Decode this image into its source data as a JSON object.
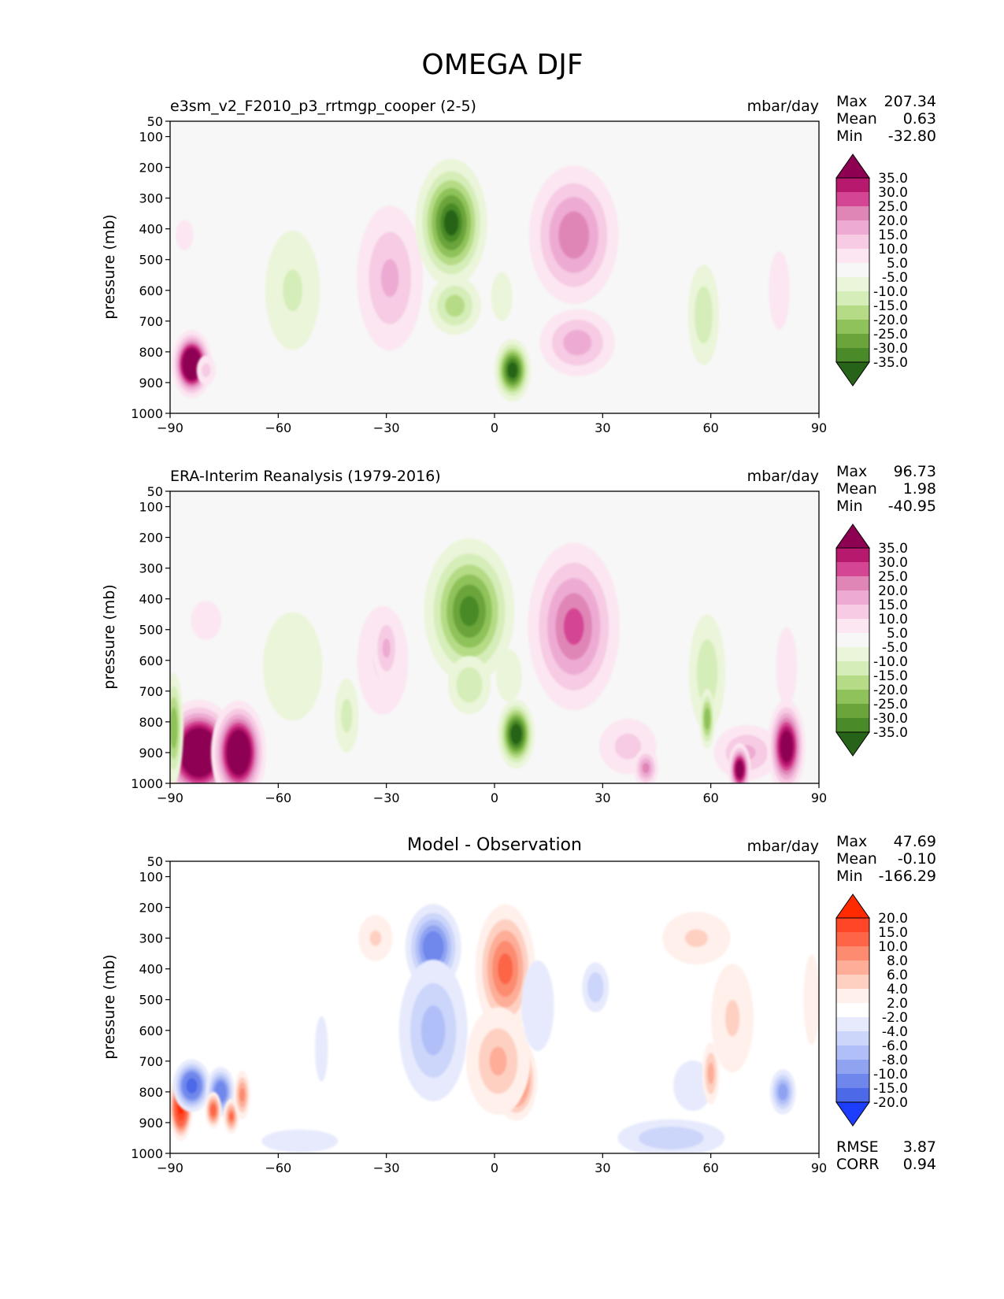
{
  "figure": {
    "title": "OMEGA DJF"
  },
  "chart_data": [
    {
      "type": "contour",
      "title": "e3sm_v2_F2010_p3_rrtmgp_cooper (2-5)",
      "units": "mbar/day",
      "ylabel": "pressure (mb)",
      "xlim": [
        -90,
        90
      ],
      "ylim": [
        50,
        1000
      ],
      "x_ticks": [
        "−90",
        "−60",
        "−30",
        "0",
        "30",
        "60",
        "90"
      ],
      "y_ticks": [
        "50",
        "100",
        "200",
        "300",
        "400",
        "500",
        "600",
        "700",
        "800",
        "900",
        "1000"
      ],
      "stats": [
        {
          "label": "Max",
          "value": "207.34"
        },
        {
          "label": "Mean",
          "value": "0.63"
        },
        {
          "label": "Min",
          "value": "-32.80"
        }
      ],
      "colorbar": {
        "levels": [
          "35.0",
          "30.0",
          "25.0",
          "20.0",
          "15.0",
          "10.0",
          "5.0",
          "-5.0",
          "-10.0",
          "-15.0",
          "-20.0",
          "-25.0",
          "-30.0",
          "-35.0"
        ],
        "colors": [
          "#8e0152",
          "#b7196e",
          "#d44593",
          "#e086b7",
          "#edabd3",
          "#f6cbe3",
          "#fbe6f1",
          "#f7f7f7",
          "#eaf5d9",
          "#d5edb8",
          "#b6db86",
          "#8fc25a",
          "#6aa43b",
          "#4a8a28",
          "#276419"
        ]
      },
      "blobs": [
        {
          "lat": -84,
          "p": 840,
          "rl": 2.5,
          "rp": 110,
          "value": 60
        },
        {
          "lat": -80,
          "p": 860,
          "rl": 2,
          "rp": 80,
          "value": 12
        },
        {
          "lat": -86,
          "p": 420,
          "rl": 4,
          "rp": 180,
          "value": 6
        },
        {
          "lat": -56,
          "p": 600,
          "rl": 6,
          "rp": 340,
          "value": -11
        },
        {
          "lat": -29,
          "p": 560,
          "rl": 6,
          "rp": 340,
          "value": 16
        },
        {
          "lat": -12,
          "p": 380,
          "rl": 5,
          "rp": 230,
          "value": -36
        },
        {
          "lat": -11,
          "p": 650,
          "rl": 4.5,
          "rp": 130,
          "value": -18
        },
        {
          "lat": 5,
          "p": 860,
          "rl": 2.5,
          "rp": 110,
          "value": -40
        },
        {
          "lat": 2,
          "p": 620,
          "rl": 3,
          "rp": 180,
          "value": -8
        },
        {
          "lat": 22,
          "p": 420,
          "rl": 7,
          "rp": 280,
          "value": 24
        },
        {
          "lat": 23,
          "p": 770,
          "rl": 6.5,
          "rp": 150,
          "value": 18
        },
        {
          "lat": 58,
          "p": 680,
          "rl": 3,
          "rp": 250,
          "value": -14
        },
        {
          "lat": 79,
          "p": 600,
          "rl": 3,
          "rp": 290,
          "value": 8
        }
      ]
    },
    {
      "type": "contour",
      "title": "ERA-Interim Reanalysis (1979-2016)",
      "units": "mbar/day",
      "ylabel": "pressure (mb)",
      "xlim": [
        -90,
        90
      ],
      "ylim": [
        50,
        1000
      ],
      "x_ticks": [
        "−90",
        "−60",
        "−30",
        "0",
        "30",
        "60",
        "90"
      ],
      "y_ticks": [
        "50",
        "100",
        "200",
        "300",
        "400",
        "500",
        "600",
        "700",
        "800",
        "900",
        "1000"
      ],
      "stats": [
        {
          "label": "Max",
          "value": "96.73"
        },
        {
          "label": "Mean",
          "value": "1.98"
        },
        {
          "label": "Min",
          "value": "-40.95"
        }
      ],
      "colorbar": {
        "levels": [
          "35.0",
          "30.0",
          "25.0",
          "20.0",
          "15.0",
          "10.0",
          "5.0",
          "-5.0",
          "-10.0",
          "-15.0",
          "-20.0",
          "-25.0",
          "-30.0",
          "-35.0"
        ],
        "colors": [
          "#8e0152",
          "#b7196e",
          "#d44593",
          "#e086b7",
          "#edabd3",
          "#f6cbe3",
          "#fbe6f1",
          "#f7f7f7",
          "#eaf5d9",
          "#d5edb8",
          "#b6db86",
          "#8fc25a",
          "#6aa43b",
          "#4a8a28",
          "#276419"
        ]
      },
      "blobs": [
        {
          "lat": -82,
          "p": 900,
          "rl": 5,
          "rp": 170,
          "value": 60
        },
        {
          "lat": -71,
          "p": 900,
          "rl": 3.5,
          "rp": 170,
          "value": 55
        },
        {
          "lat": -89,
          "p": 820,
          "rl": 1.5,
          "rp": 220,
          "value": -25
        },
        {
          "lat": -80,
          "p": 470,
          "rl": 7,
          "rp": 230,
          "value": 6
        },
        {
          "lat": -56,
          "p": 620,
          "rl": 7,
          "rp": 330,
          "value": -10
        },
        {
          "lat": -41,
          "p": 780,
          "rl": 2.5,
          "rp": 200,
          "value": -12
        },
        {
          "lat": -31,
          "p": 600,
          "rl": 6,
          "rp": 330,
          "value": 10
        },
        {
          "lat": -30,
          "p": 560,
          "rl": 2.5,
          "rp": 170,
          "value": 16
        },
        {
          "lat": -7,
          "p": 440,
          "rl": 6.5,
          "rp": 270,
          "value": -32
        },
        {
          "lat": -7,
          "p": 680,
          "rl": 4,
          "rp": 140,
          "value": -15
        },
        {
          "lat": 6,
          "p": 840,
          "rl": 2.5,
          "rp": 120,
          "value": -42
        },
        {
          "lat": 4,
          "p": 650,
          "rl": 3,
          "rp": 160,
          "value": -10
        },
        {
          "lat": 22,
          "p": 490,
          "rl": 7,
          "rp": 330,
          "value": 26
        },
        {
          "lat": 37,
          "p": 880,
          "rl": 6,
          "rp": 150,
          "value": 12
        },
        {
          "lat": 42,
          "p": 950,
          "rl": 2,
          "rp": 80,
          "value": 22
        },
        {
          "lat": 59,
          "p": 640,
          "rl": 3.5,
          "rp": 290,
          "value": -14
        },
        {
          "lat": 59,
          "p": 790,
          "rl": 1.2,
          "rp": 120,
          "value": -25
        },
        {
          "lat": 70,
          "p": 900,
          "rl": 6,
          "rp": 130,
          "value": 16
        },
        {
          "lat": 68,
          "p": 955,
          "rl": 1.5,
          "rp": 90,
          "value": 45
        },
        {
          "lat": 81,
          "p": 880,
          "rl": 2.5,
          "rp": 160,
          "value": 45
        },
        {
          "lat": 81,
          "p": 620,
          "rl": 3,
          "rp": 290,
          "value": 8
        }
      ]
    },
    {
      "type": "contour",
      "title": "Model - Observation",
      "units": "mbar/day",
      "ylabel": "pressure (mb)",
      "xlim": [
        -90,
        90
      ],
      "ylim": [
        50,
        1000
      ],
      "x_ticks": [
        "−90",
        "−60",
        "−30",
        "0",
        "30",
        "60",
        "90"
      ],
      "y_ticks": [
        "50",
        "100",
        "200",
        "300",
        "400",
        "500",
        "600",
        "700",
        "800",
        "900",
        "1000"
      ],
      "stats": [
        {
          "label": "Max",
          "value": "47.69"
        },
        {
          "label": "Mean",
          "value": "-0.10"
        },
        {
          "label": "Min",
          "value": "-166.29"
        }
      ],
      "extra_stats": [
        {
          "label": "RMSE",
          "value": "3.87"
        },
        {
          "label": "CORR",
          "value": "0.94"
        }
      ],
      "colorbar": {
        "levels": [
          "20.0",
          "15.0",
          "10.0",
          "8.0",
          "6.0",
          "4.0",
          "2.0",
          "-2.0",
          "-4.0",
          "-6.0",
          "-8.0",
          "-10.0",
          "-15.0",
          "-20.0"
        ],
        "colors": [
          "#ff2a00",
          "#ff4626",
          "#fd6546",
          "#fc8b70",
          "#fdad98",
          "#fed0c2",
          "#fff0eb",
          "#ffffff",
          "#e6eafc",
          "#ccd5fa",
          "#b0bff7",
          "#8fa3f1",
          "#6f87ec",
          "#4c69e8",
          "#1d3dff"
        ]
      },
      "blobs": [
        {
          "lat": -87,
          "p": 850,
          "rl": 1.5,
          "rp": 110,
          "value": 22
        },
        {
          "lat": -84,
          "p": 780,
          "rl": 2.5,
          "rp": 90,
          "value": -18
        },
        {
          "lat": -76,
          "p": 800,
          "rl": 2,
          "rp": 90,
          "value": -14
        },
        {
          "lat": -78,
          "p": 860,
          "rl": 1.2,
          "rp": 70,
          "value": 12
        },
        {
          "lat": -73,
          "p": 880,
          "rl": 1.2,
          "rp": 70,
          "value": 10
        },
        {
          "lat": -70,
          "p": 810,
          "rl": 1.3,
          "rp": 100,
          "value": 9
        },
        {
          "lat": -54,
          "p": 960,
          "rl": 9,
          "rp": 70,
          "value": -4
        },
        {
          "lat": -48,
          "p": 660,
          "rl": 2,
          "rp": 260,
          "value": -3
        },
        {
          "lat": -33,
          "p": 300,
          "rl": 4,
          "rp": 140,
          "value": 4
        },
        {
          "lat": -17,
          "p": 330,
          "rl": 4,
          "rp": 160,
          "value": -13
        },
        {
          "lat": -17,
          "p": 600,
          "rl": 6,
          "rp": 320,
          "value": -7
        },
        {
          "lat": 3,
          "p": 400,
          "rl": 4.5,
          "rp": 250,
          "value": 11
        },
        {
          "lat": 6,
          "p": 760,
          "rl": 3,
          "rp": 150,
          "value": 14
        },
        {
          "lat": 1,
          "p": 700,
          "rl": 6,
          "rp": 260,
          "value": 6
        },
        {
          "lat": 12,
          "p": 520,
          "rl": 5,
          "rp": 360,
          "value": -3
        },
        {
          "lat": 28,
          "p": 460,
          "rl": 2.5,
          "rp": 120,
          "value": -6
        },
        {
          "lat": 49,
          "p": 950,
          "rl": 10,
          "rp": 90,
          "value": -6
        },
        {
          "lat": 55,
          "p": 780,
          "rl": 6,
          "rp": 200,
          "value": -3
        },
        {
          "lat": 56,
          "p": 300,
          "rl": 8,
          "rp": 160,
          "value": 4
        },
        {
          "lat": 66,
          "p": 560,
          "rl": 5,
          "rp": 330,
          "value": 4
        },
        {
          "lat": 60,
          "p": 740,
          "rl": 1.5,
          "rp": 140,
          "value": 7
        },
        {
          "lat": 80,
          "p": 800,
          "rl": 2,
          "rp": 90,
          "value": -10
        },
        {
          "lat": 88,
          "p": 500,
          "rl": 2.5,
          "rp": 360,
          "value": 3
        }
      ]
    }
  ]
}
